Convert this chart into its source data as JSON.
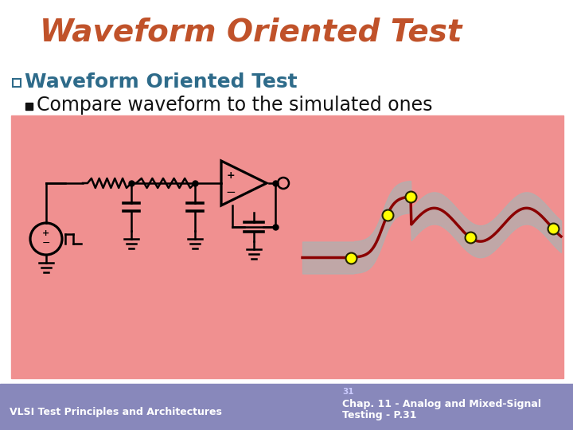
{
  "title": "Waveform Oriented Test",
  "title_color": "#c0522a",
  "title_fontsize": 28,
  "bullet1_text": "Waveform Oriented Test",
  "bullet1_color": "#2e6b8a",
  "bullet1_fontsize": 18,
  "bullet2_text": "Compare waveform to the simulated ones",
  "bullet2_color": "#111111",
  "bullet2_fontsize": 17,
  "bg_color": "#ffffff",
  "diagram_bg": "#f09090",
  "footer_bg": "#8888bb",
  "footer_left": "VLSI Test Principles and Architectures",
  "footer_right1": "Chap. 11 - Analog and Mixed-Signal",
  "footer_right2": "Testing - P.31",
  "footer_num": "31",
  "footer_color": "#ffffff",
  "footer_fontsize": 9,
  "waveform_color": "#8b0000",
  "band_color": "#b0b0b0",
  "dot_yellow": "#ffff00",
  "dot_edge": "#222200"
}
